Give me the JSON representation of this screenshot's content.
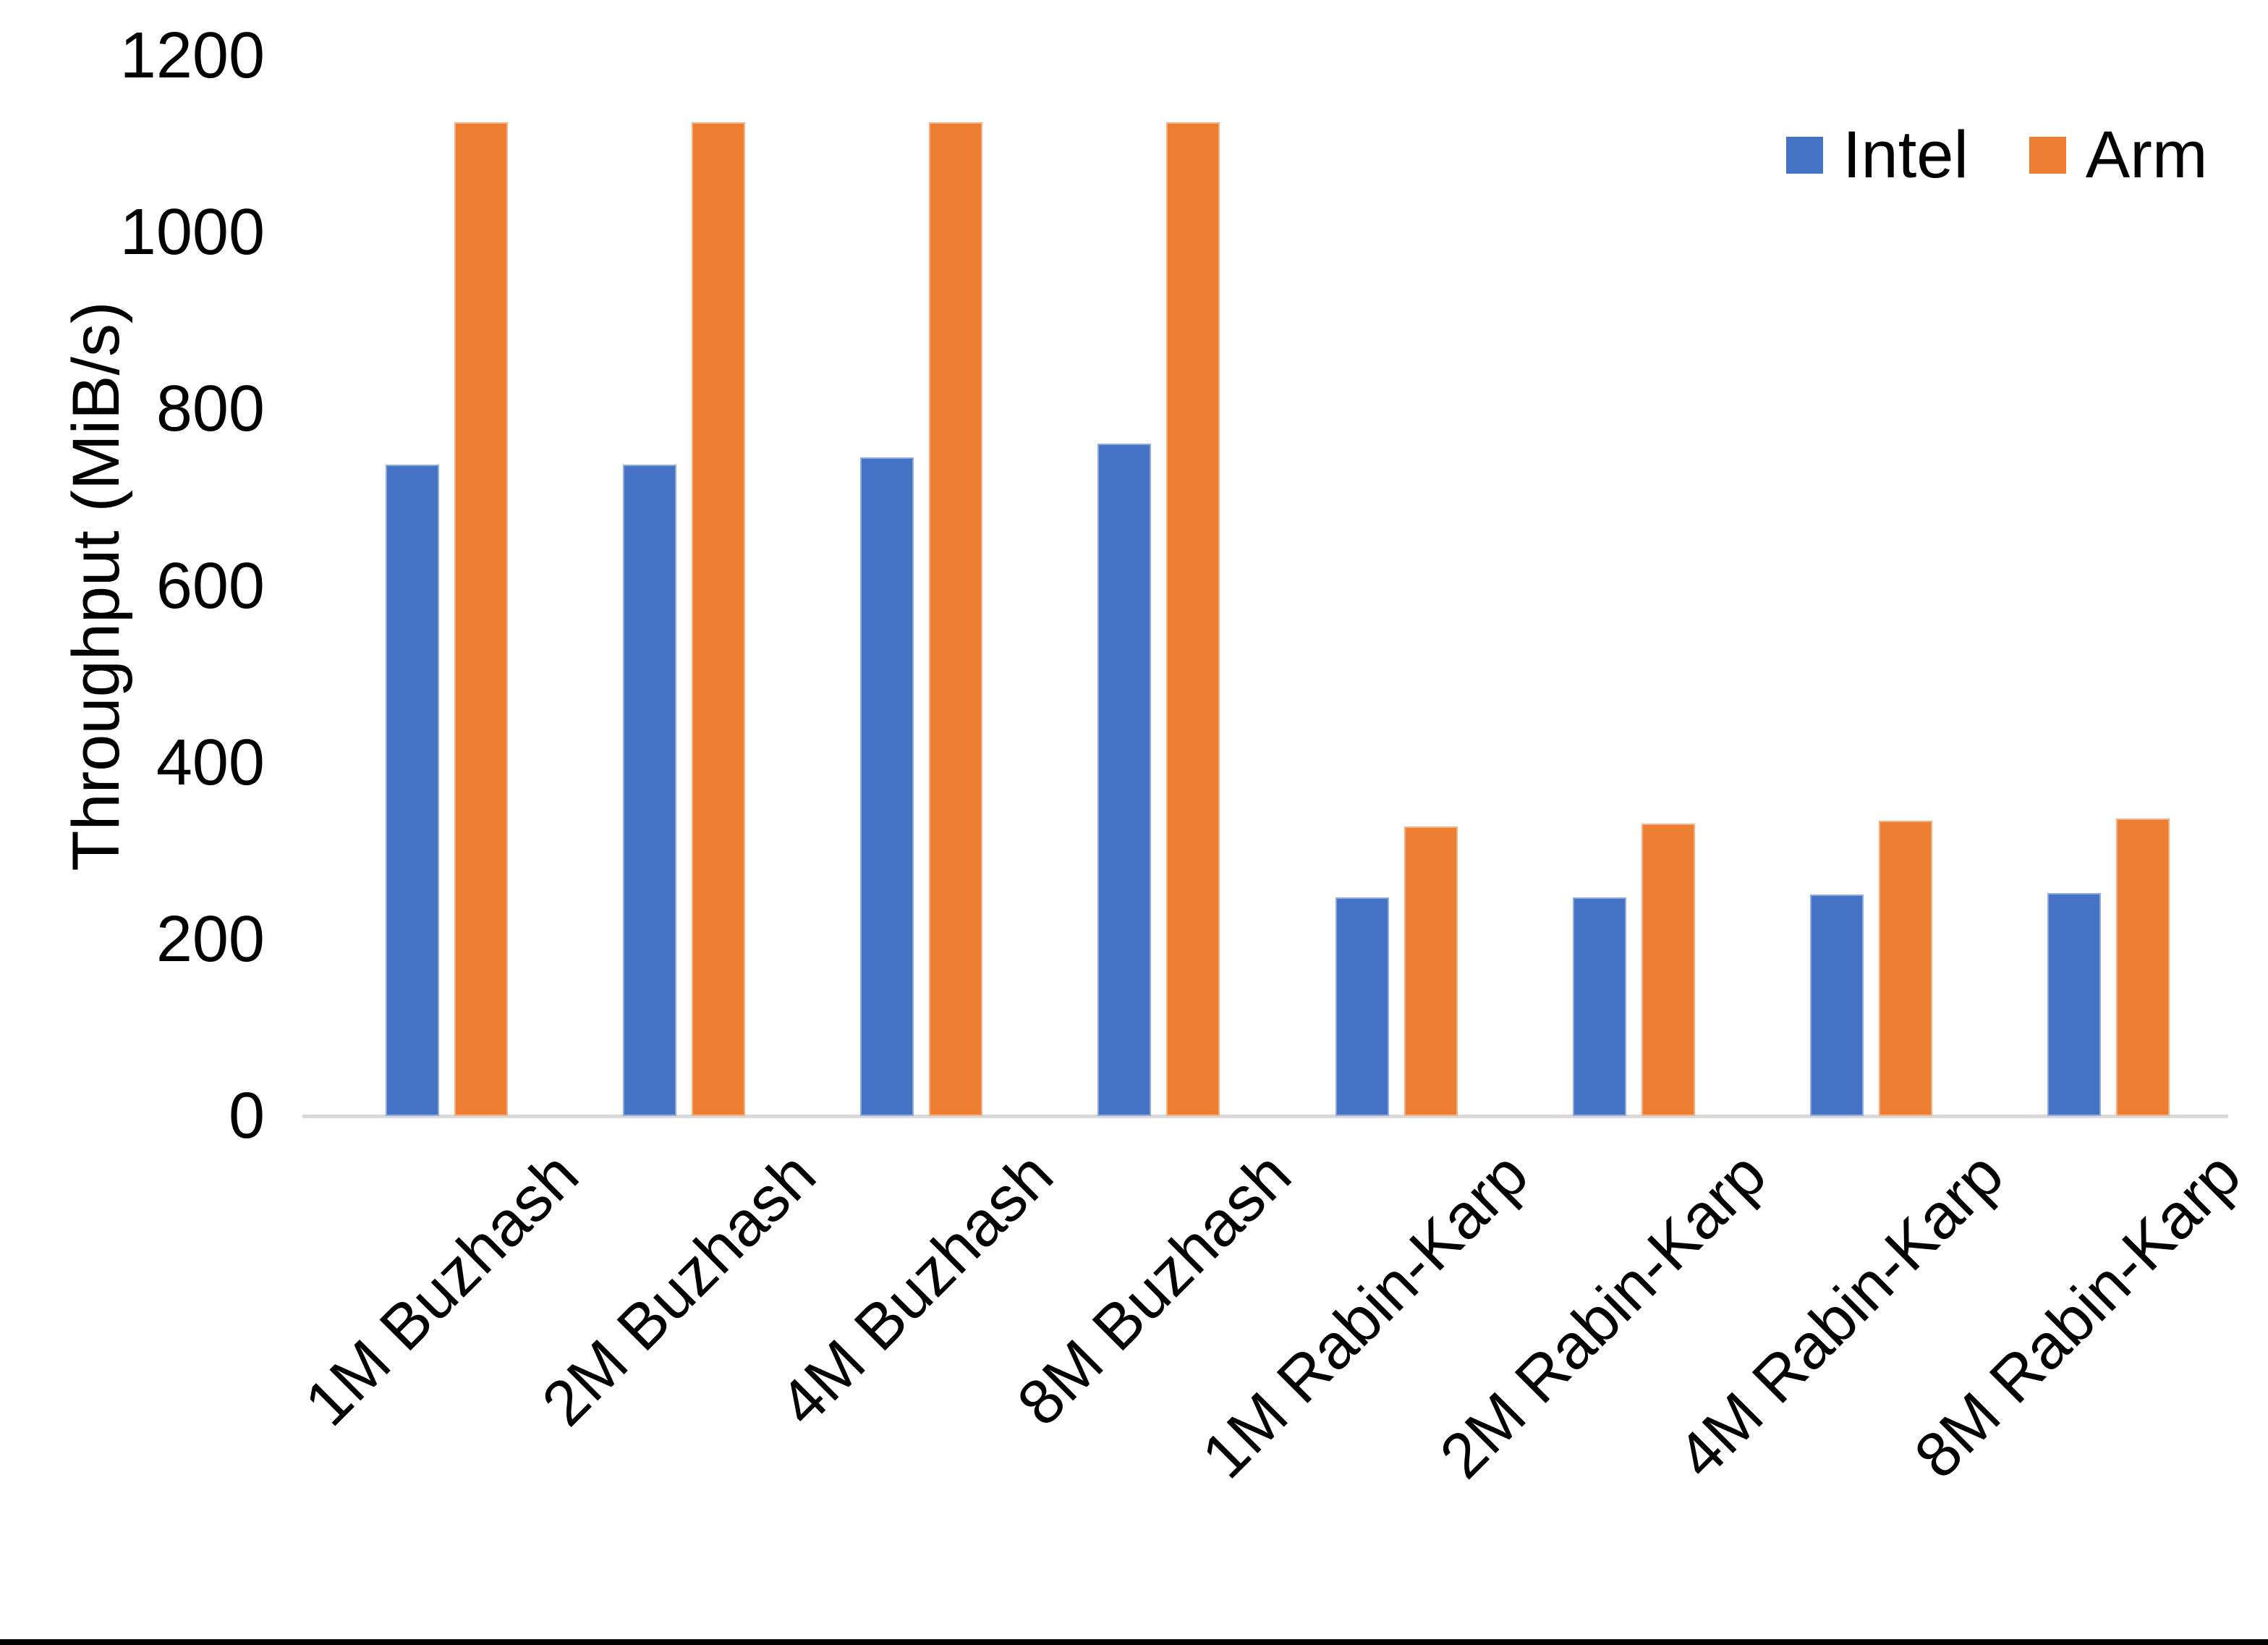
{
  "chart_data": {
    "type": "bar",
    "title": "",
    "xlabel": "",
    "ylabel": "Throughput (MiB/s)",
    "ylim": [
      0,
      1200
    ],
    "yticks": [
      0,
      200,
      400,
      600,
      800,
      1000,
      1200
    ],
    "grid": false,
    "legend_position": "top-right",
    "categories": [
      "1M Buzhash",
      "2M Buzhash",
      "4M Buzhash",
      "8M Buzhash",
      "1M Rabin-Karp",
      "2M Rabin-Karp",
      "4M Rabin-Karp",
      "8M Rabin-Karp"
    ],
    "series": [
      {
        "name": "Intel",
        "color": "#4472C4",
        "values": [
          737,
          737,
          745,
          761,
          247,
          247,
          251,
          252
        ]
      },
      {
        "name": "Arm",
        "color": "#ED7D31",
        "values": [
          1125,
          1125,
          1125,
          1125,
          328,
          331,
          334,
          337
        ]
      }
    ],
    "colors": {
      "intel_blue": "#4472C4",
      "arm_orange": "#ED7D31",
      "axis_line_gray": "#D9D9D9"
    }
  }
}
